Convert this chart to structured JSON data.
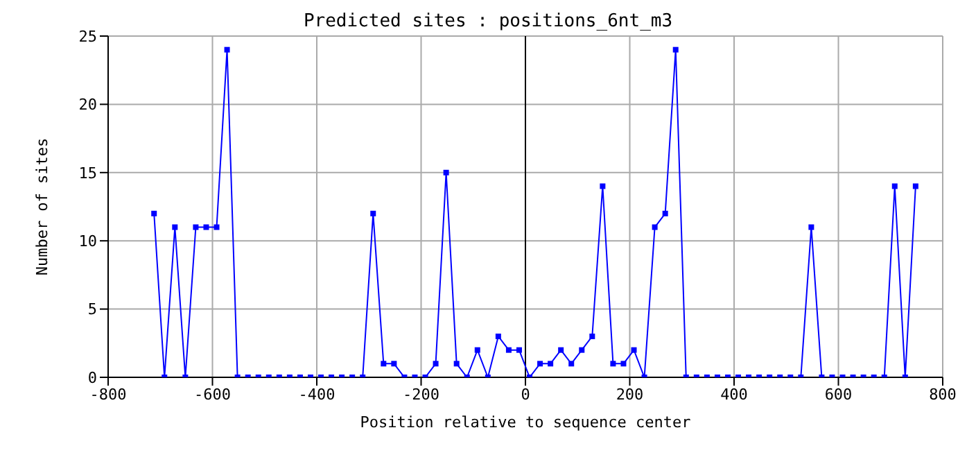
{
  "chart_data": {
    "type": "line",
    "title": "Predicted sites : positions_6nt_m3",
    "xlabel": "Position relative to sequence center",
    "ylabel": "Number of sites",
    "x": [
      -712,
      -692,
      -672,
      -652,
      -632,
      -612,
      -592,
      -572,
      -552,
      -532,
      -512,
      -492,
      -472,
      -452,
      -432,
      -412,
      -392,
      -372,
      -352,
      -332,
      -312,
      -292,
      -272,
      -252,
      -232,
      -212,
      -192,
      -172,
      -152,
      -132,
      -112,
      -92,
      -72,
      -52,
      -32,
      -12,
      8,
      28,
      48,
      68,
      88,
      108,
      128,
      148,
      168,
      188,
      208,
      228,
      248,
      268,
      288,
      308,
      328,
      348,
      368,
      388,
      408,
      428,
      448,
      468,
      488,
      508,
      528,
      548,
      568,
      588,
      608,
      628,
      648,
      668,
      688,
      708,
      728,
      748
    ],
    "series": [
      {
        "color": "#0000ff",
        "values": [
          12,
          0,
          11,
          0,
          11,
          11,
          11,
          24,
          0,
          0,
          0,
          0,
          0,
          0,
          0,
          0,
          0,
          0,
          0,
          0,
          0,
          12,
          1,
          1,
          0,
          0,
          0,
          1,
          15,
          1,
          0,
          2,
          0,
          3,
          2,
          2,
          0,
          1,
          1,
          2,
          1,
          2,
          3,
          14,
          1,
          1,
          2,
          0,
          11,
          12,
          24,
          0,
          0,
          0,
          0,
          0,
          0,
          0,
          0,
          0,
          0,
          0,
          0,
          11,
          0,
          0,
          0,
          0,
          0,
          0,
          0,
          14,
          0,
          14
        ]
      }
    ],
    "xlim": [
      -800,
      800
    ],
    "xticks": [
      -800,
      -600,
      -400,
      -200,
      0,
      200,
      400,
      600,
      800
    ],
    "ylim": [
      0,
      25
    ],
    "yticks": [
      0,
      5,
      10,
      15,
      20,
      25
    ],
    "ref_lines": [
      {
        "axis": "x",
        "value": 0,
        "color": "#000000"
      }
    ],
    "grid": true,
    "marker": "square",
    "line_style": "solid"
  }
}
